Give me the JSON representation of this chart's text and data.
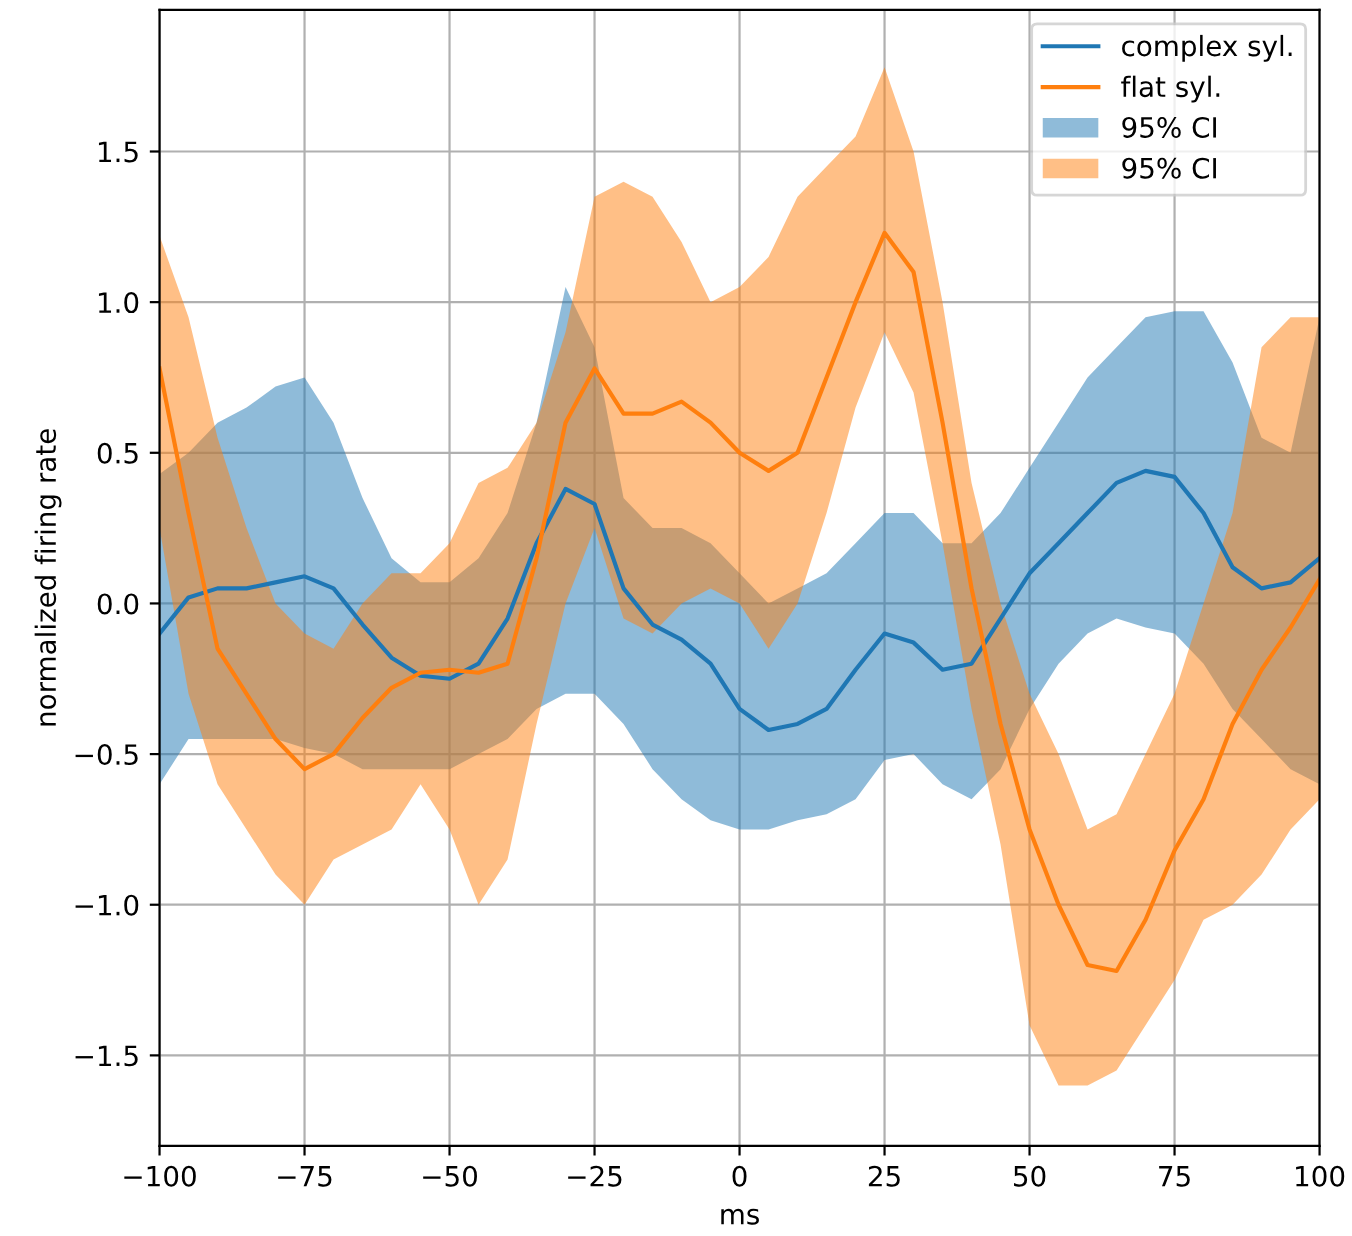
{
  "chart_data": {
    "type": "line",
    "xlabel": "ms",
    "ylabel": "normalized firing rate",
    "x": [
      -100,
      -95,
      -90,
      -85,
      -80,
      -75,
      -70,
      -65,
      -60,
      -55,
      -50,
      -45,
      -40,
      -35,
      -30,
      -25,
      -20,
      -15,
      -10,
      -5,
      0,
      5,
      10,
      15,
      20,
      25,
      30,
      35,
      40,
      45,
      50,
      55,
      60,
      65,
      70,
      75,
      80,
      85,
      90,
      95,
      100
    ],
    "series": [
      {
        "name": "complex syl.",
        "color": "#1f77b4",
        "values": [
          -0.1,
          0.02,
          0.05,
          0.05,
          0.07,
          0.09,
          0.05,
          -0.07,
          -0.18,
          -0.24,
          -0.25,
          -0.2,
          -0.05,
          0.2,
          0.38,
          0.33,
          0.05,
          -0.07,
          -0.12,
          -0.2,
          -0.35,
          -0.42,
          -0.4,
          -0.35,
          -0.22,
          -0.1,
          -0.13,
          -0.22,
          -0.2,
          -0.05,
          0.1,
          0.2,
          0.3,
          0.4,
          0.44,
          0.42,
          0.3,
          0.12,
          0.05,
          0.07,
          0.15
        ],
        "lower": [
          -0.6,
          -0.45,
          -0.45,
          -0.45,
          -0.45,
          -0.48,
          -0.5,
          -0.55,
          -0.55,
          -0.55,
          -0.55,
          -0.5,
          -0.45,
          -0.35,
          -0.3,
          -0.3,
          -0.4,
          -0.55,
          -0.65,
          -0.72,
          -0.75,
          -0.75,
          -0.72,
          -0.7,
          -0.65,
          -0.52,
          -0.5,
          -0.6,
          -0.65,
          -0.55,
          -0.35,
          -0.2,
          -0.1,
          -0.05,
          -0.08,
          -0.1,
          -0.2,
          -0.35,
          -0.45,
          -0.55,
          -0.6
        ],
        "upper": [
          0.43,
          0.5,
          0.6,
          0.65,
          0.72,
          0.75,
          0.6,
          0.35,
          0.15,
          0.07,
          0.07,
          0.15,
          0.3,
          0.6,
          1.05,
          0.85,
          0.35,
          0.25,
          0.25,
          0.2,
          0.1,
          0.0,
          0.05,
          0.1,
          0.2,
          0.3,
          0.3,
          0.2,
          0.2,
          0.3,
          0.45,
          0.6,
          0.75,
          0.85,
          0.95,
          0.97,
          0.97,
          0.8,
          0.55,
          0.5,
          0.95
        ]
      },
      {
        "name": "flat syl.",
        "color": "#ff7f0e",
        "values": [
          0.78,
          0.3,
          -0.15,
          -0.3,
          -0.45,
          -0.55,
          -0.5,
          -0.38,
          -0.28,
          -0.23,
          -0.22,
          -0.23,
          -0.2,
          0.15,
          0.6,
          0.78,
          0.63,
          0.63,
          0.67,
          0.6,
          0.5,
          0.44,
          0.5,
          0.75,
          1.0,
          1.23,
          1.1,
          0.6,
          0.05,
          -0.4,
          -0.75,
          -1.0,
          -1.2,
          -1.22,
          -1.05,
          -0.82,
          -0.65,
          -0.4,
          -0.22,
          -0.08,
          0.08
        ],
        "lower": [
          0.25,
          -0.3,
          -0.6,
          -0.75,
          -0.9,
          -1.0,
          -0.85,
          -0.8,
          -0.75,
          -0.6,
          -0.75,
          -1.0,
          -0.85,
          -0.4,
          0.0,
          0.25,
          -0.05,
          -0.1,
          0.0,
          0.05,
          0.0,
          -0.15,
          0.0,
          0.3,
          0.65,
          0.9,
          0.7,
          0.2,
          -0.35,
          -0.8,
          -1.4,
          -1.6,
          -1.6,
          -1.55,
          -1.4,
          -1.25,
          -1.05,
          -1.0,
          -0.9,
          -0.75,
          -0.65
        ],
        "upper": [
          1.22,
          0.95,
          0.55,
          0.25,
          0.0,
          -0.1,
          -0.15,
          0.0,
          0.1,
          0.1,
          0.2,
          0.4,
          0.45,
          0.6,
          0.9,
          1.35,
          1.4,
          1.35,
          1.2,
          1.0,
          1.05,
          1.15,
          1.35,
          1.45,
          1.55,
          1.78,
          1.5,
          1.0,
          0.4,
          0.0,
          -0.3,
          -0.5,
          -0.75,
          -0.7,
          -0.5,
          -0.3,
          0.0,
          0.3,
          0.85,
          0.95,
          0.95
        ]
      },
      {
        "name": "95% CI",
        "type": "area",
        "color": "#1f77b4",
        "values": [
          null,
          null,
          null,
          null,
          null,
          null,
          null,
          null,
          null,
          null,
          null,
          null,
          null,
          null,
          null,
          null,
          null,
          null,
          null,
          null,
          null,
          null,
          null,
          null,
          null,
          null,
          null,
          null,
          null,
          null,
          null,
          null,
          null,
          null,
          null,
          null,
          null,
          null,
          null,
          null,
          null
        ]
      },
      {
        "name": "95% CI",
        "type": "area",
        "color": "#ff7f0e",
        "values": [
          null,
          null,
          null,
          null,
          null,
          null,
          null,
          null,
          null,
          null,
          null,
          null,
          null,
          null,
          null,
          null,
          null,
          null,
          null,
          null,
          null,
          null,
          null,
          null,
          null,
          null,
          null,
          null,
          null,
          null,
          null,
          null,
          null,
          null,
          null,
          null,
          null,
          null,
          null,
          null,
          null
        ]
      }
    ],
    "xlim": [
      -100,
      100
    ],
    "xticks": [
      {
        "value": -100,
        "label": "−100"
      },
      {
        "value": -75,
        "label": "−75"
      },
      {
        "value": -50,
        "label": "−50"
      },
      {
        "value": -25,
        "label": "−25"
      },
      0,
      25,
      50,
      75,
      100
    ],
    "ylim": [
      -1.8,
      1.97
    ],
    "yticks": [
      {
        "value": -1.5,
        "label": "−1.5"
      },
      {
        "value": -1.0,
        "label": "−1.0"
      },
      {
        "value": -0.5,
        "label": "−0.5"
      },
      {
        "value": 0.0,
        "label": "0.0"
      },
      {
        "value": 0.5,
        "label": "0.5"
      },
      {
        "value": 1.0,
        "label": "1.0"
      },
      {
        "value": 1.5,
        "label": "1.5"
      }
    ],
    "grid": true,
    "legend": "top right"
  }
}
